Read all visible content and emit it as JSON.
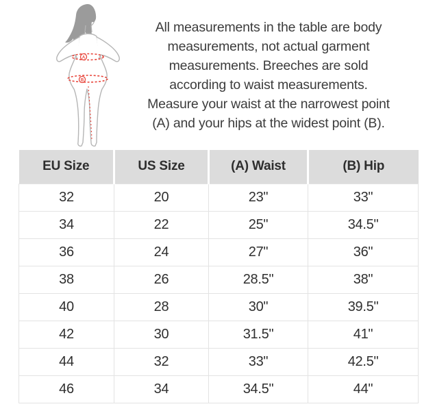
{
  "intro": {
    "text": "All measurements in the table are body\nmeasurements, not actual garment\nmeasurements. Breeches are sold\naccording to waist measurements.\nMeasure your waist at the narrowest point\n(A) and your hips at the widest point (B).",
    "figure": {
      "description": "woman-silhouette-with-measurement-lines",
      "waist_marker": "A",
      "hip_marker": "B",
      "line_color": "#e8463c",
      "hair_color": "#9b9b9b",
      "outline_color": "#b5b5b5"
    }
  },
  "table": {
    "headers": [
      "EU Size",
      "US Size",
      "(A) Waist",
      "(B) Hip"
    ],
    "rows": [
      [
        "32",
        "20",
        "23\"",
        "33\""
      ],
      [
        "34",
        "22",
        "25\"",
        "34.5\""
      ],
      [
        "36",
        "24",
        "27\"",
        "36\""
      ],
      [
        "38",
        "26",
        "28.5\"",
        "38\""
      ],
      [
        "40",
        "28",
        "30\"",
        "39.5\""
      ],
      [
        "42",
        "30",
        "31.5\"",
        "41\""
      ],
      [
        "44",
        "32",
        "33\"",
        "42.5\""
      ],
      [
        "46",
        "34",
        "34.5\"",
        "44\""
      ]
    ],
    "header_bg": "#dcdcdc",
    "border_color": "#e3e3e3"
  },
  "chart_data": {
    "type": "table",
    "title": "Breeches size chart (body measurements)",
    "columns": [
      "EU Size",
      "US Size",
      "(A) Waist",
      "(B) Hip"
    ],
    "rows": [
      [
        "32",
        "20",
        "23\"",
        "33\""
      ],
      [
        "34",
        "22",
        "25\"",
        "34.5\""
      ],
      [
        "36",
        "24",
        "27\"",
        "36\""
      ],
      [
        "38",
        "26",
        "28.5\"",
        "38\""
      ],
      [
        "40",
        "28",
        "30\"",
        "39.5\""
      ],
      [
        "42",
        "30",
        "31.5\"",
        "41\""
      ],
      [
        "44",
        "32",
        "33\"",
        "42.5\""
      ],
      [
        "46",
        "34",
        "34.5\"",
        "44\""
      ]
    ]
  }
}
